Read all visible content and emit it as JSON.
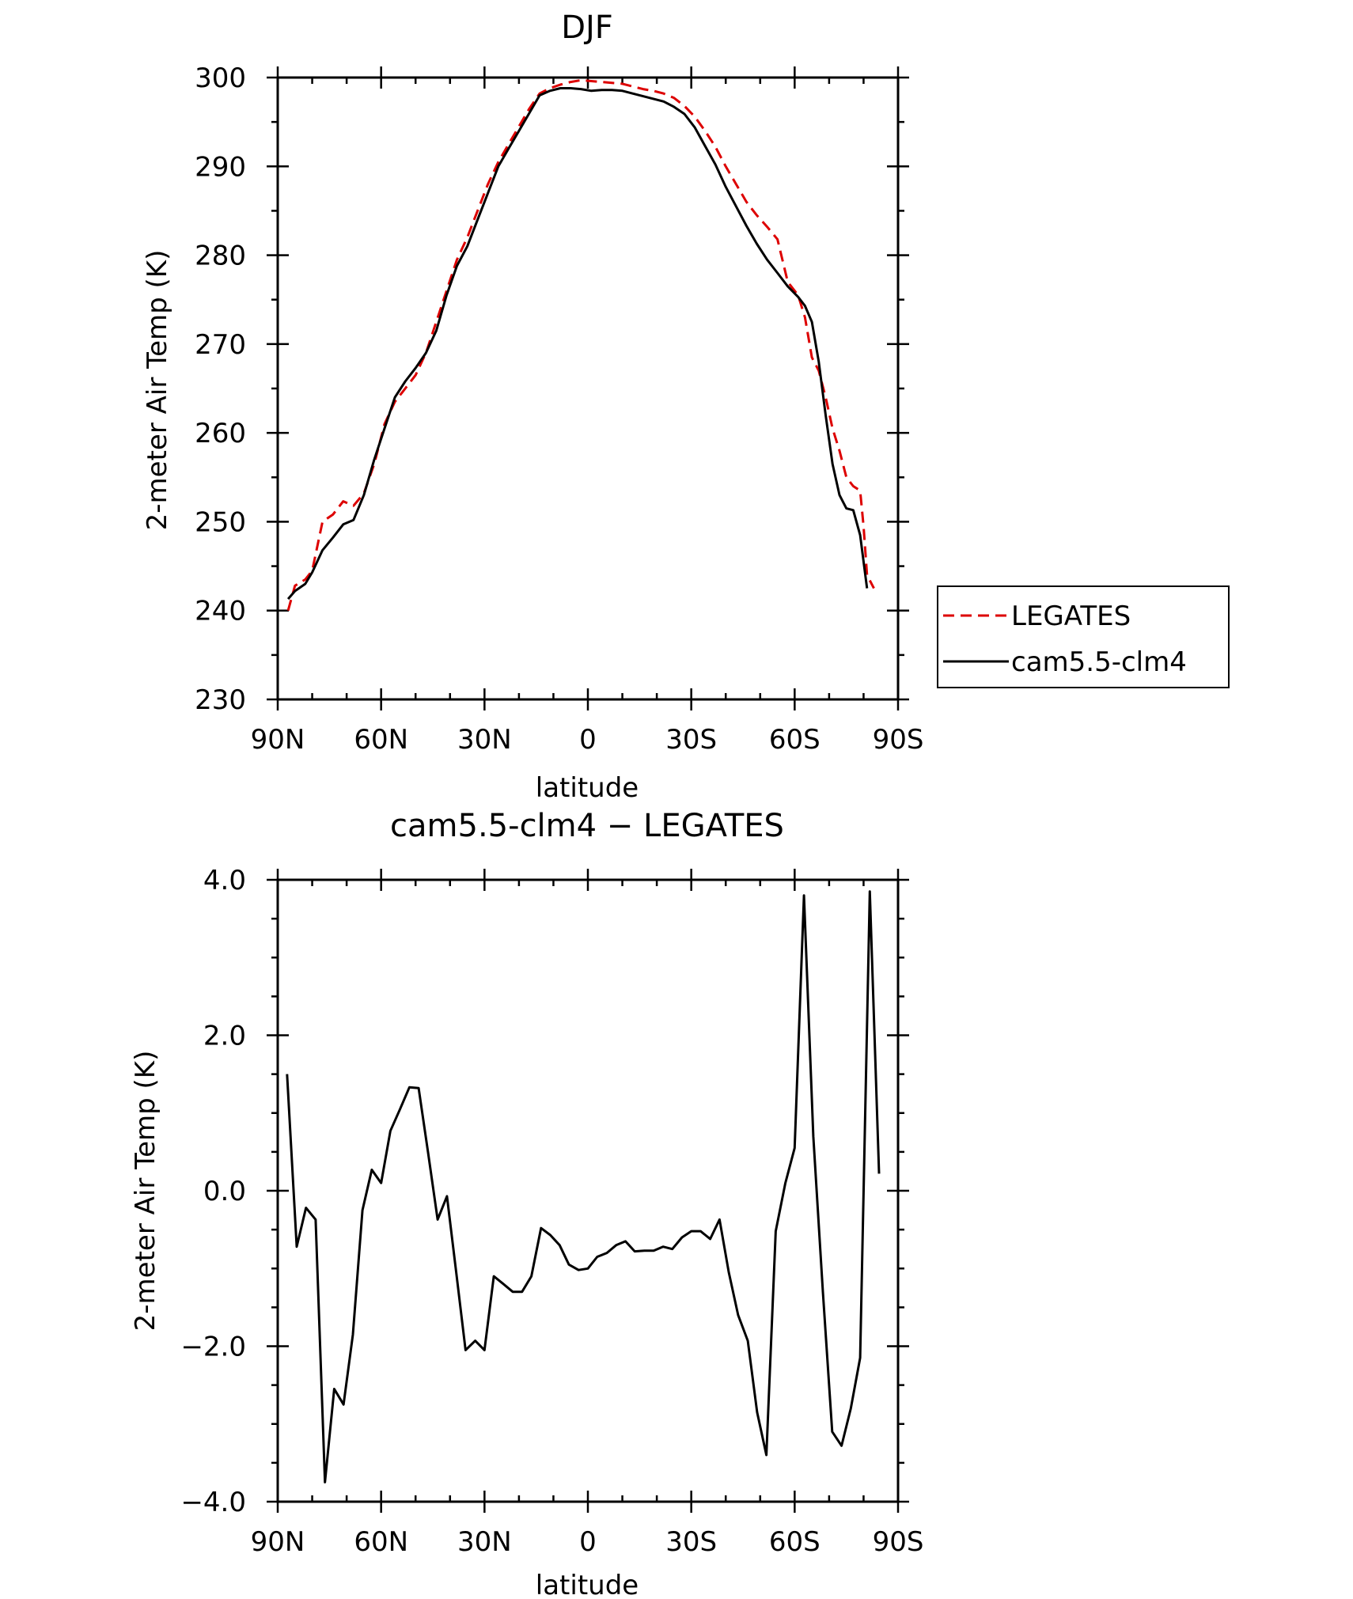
{
  "chart_data": [
    {
      "type": "line",
      "title": "DJF",
      "xlabel": "latitude",
      "ylabel": "2-meter Air Temp (K)",
      "xlim": [
        90,
        -90
      ],
      "ylim": [
        230,
        300
      ],
      "xticks": [
        90,
        60,
        30,
        0,
        -30,
        -60,
        -90
      ],
      "xtick_labels": [
        "90N",
        "60N",
        "30N",
        "0",
        "30S",
        "60S",
        "90S"
      ],
      "yticks": [
        230,
        240,
        250,
        260,
        270,
        280,
        290,
        300
      ],
      "ytick_labels": [
        "230",
        "240",
        "250",
        "260",
        "270",
        "280",
        "290",
        "300"
      ],
      "legend_position": "right",
      "series": [
        {
          "name": "LEGATES",
          "color": "#dd0000",
          "style": "dashed",
          "points": [
            [
              87,
              240
            ],
            [
              85,
              242.8
            ],
            [
              82,
              243.5
            ],
            [
              80,
              244.5
            ],
            [
              77,
              250
            ],
            [
              74,
              250.8
            ],
            [
              71,
              252.3
            ],
            [
              68,
              251.8
            ],
            [
              65,
              253.2
            ],
            [
              62,
              256.5
            ],
            [
              59,
              261
            ],
            [
              56,
              263.5
            ],
            [
              53,
              265
            ],
            [
              50,
              266.5
            ],
            [
              47,
              269
            ],
            [
              44,
              272.5
            ],
            [
              41,
              276
            ],
            [
              38,
              279.5
            ],
            [
              35,
              282
            ],
            [
              32,
              285
            ],
            [
              29,
              288
            ],
            [
              26,
              290.5
            ],
            [
              23,
              292.5
            ],
            [
              20,
              294.5
            ],
            [
              17,
              296.5
            ],
            [
              14,
              298.2
            ],
            [
              11,
              298.8
            ],
            [
              8,
              299.2
            ],
            [
              5,
              299.5
            ],
            [
              2,
              299.7
            ],
            [
              -1,
              299.6
            ],
            [
              -4,
              299.5
            ],
            [
              -7,
              299.4
            ],
            [
              -10,
              299.3
            ],
            [
              -13,
              299
            ],
            [
              -16,
              298.7
            ],
            [
              -19,
              298.5
            ],
            [
              -22,
              298.2
            ],
            [
              -25,
              297.7
            ],
            [
              -28,
              296.8
            ],
            [
              -31,
              295.6
            ],
            [
              -34,
              294
            ],
            [
              -37,
              292.2
            ],
            [
              -40,
              290
            ],
            [
              -43,
              288
            ],
            [
              -46,
              286
            ],
            [
              -49,
              284.5
            ],
            [
              -52,
              283.2
            ],
            [
              -55,
              281.8
            ],
            [
              -58,
              277
            ],
            [
              -61,
              275.5
            ],
            [
              -63,
              273
            ],
            [
              -65,
              268.5
            ],
            [
              -67,
              267
            ],
            [
              -69,
              264
            ],
            [
              -71,
              260.5
            ],
            [
              -73,
              258
            ],
            [
              -75,
              255
            ],
            [
              -77,
              254
            ],
            [
              -79,
              253.5
            ],
            [
              -80,
              249.5
            ],
            [
              -81,
              244
            ],
            [
              -83,
              242.5
            ]
          ]
        },
        {
          "name": "cam5.5-clm4",
          "color": "#000000",
          "style": "solid",
          "points": [
            [
              87,
              241.3
            ],
            [
              85,
              242.2
            ],
            [
              82,
              243
            ],
            [
              80,
              244.3
            ],
            [
              77,
              246.8
            ],
            [
              74,
              248.2
            ],
            [
              71,
              249.7
            ],
            [
              68,
              250.2
            ],
            [
              65,
              253
            ],
            [
              62,
              257
            ],
            [
              59,
              260.5
            ],
            [
              56,
              264
            ],
            [
              53,
              265.8
            ],
            [
              50,
              267.3
            ],
            [
              47,
              269
            ],
            [
              44,
              271.5
            ],
            [
              41,
              275.5
            ],
            [
              38,
              278.8
            ],
            [
              35,
              281
            ],
            [
              32,
              284
            ],
            [
              29,
              287
            ],
            [
              26,
              290
            ],
            [
              23,
              292
            ],
            [
              20,
              294
            ],
            [
              17,
              296
            ],
            [
              14,
              298
            ],
            [
              11,
              298.5
            ],
            [
              8,
              298.8
            ],
            [
              5,
              298.8
            ],
            [
              2,
              298.7
            ],
            [
              -1,
              298.5
            ],
            [
              -4,
              298.6
            ],
            [
              -7,
              298.6
            ],
            [
              -10,
              298.5
            ],
            [
              -13,
              298.2
            ],
            [
              -16,
              297.9
            ],
            [
              -19,
              297.6
            ],
            [
              -22,
              297.3
            ],
            [
              -25,
              296.7
            ],
            [
              -28,
              295.9
            ],
            [
              -31,
              294.4
            ],
            [
              -34,
              292.3
            ],
            [
              -37,
              290.2
            ],
            [
              -40,
              287.7
            ],
            [
              -43,
              285.5
            ],
            [
              -46,
              283.3
            ],
            [
              -49,
              281.3
            ],
            [
              -52,
              279.5
            ],
            [
              -55,
              278
            ],
            [
              -58,
              276.5
            ],
            [
              -61,
              275.3
            ],
            [
              -63,
              274.3
            ],
            [
              -65,
              272.5
            ],
            [
              -67,
              268
            ],
            [
              -69,
              262
            ],
            [
              -71,
              256.5
            ],
            [
              -73,
              253
            ],
            [
              -75,
              251.5
            ],
            [
              -77,
              251.3
            ],
            [
              -79,
              248.5
            ],
            [
              -81,
              242.5
            ]
          ]
        }
      ]
    },
    {
      "type": "line",
      "title": "cam5.5-clm4 − LEGATES",
      "xlabel": "latitude",
      "ylabel": "2-meter Air Temp (K)",
      "xlim": [
        90,
        -90
      ],
      "ylim": [
        -4,
        4
      ],
      "xticks": [
        90,
        60,
        30,
        0,
        -30,
        -60,
        -90
      ],
      "xtick_labels": [
        "90N",
        "60N",
        "30N",
        "0",
        "30S",
        "60S",
        "90S"
      ],
      "yticks": [
        -4,
        -2,
        0,
        2,
        4
      ],
      "ytick_labels": [
        "−4.0",
        "−2.0",
        "0.0",
        "2.0",
        "4.0"
      ],
      "series": [
        {
          "color": "#000000",
          "style": "solid",
          "points": [
            [
              87.3,
              1.5
            ],
            [
              84.5,
              -0.72
            ],
            [
              81.8,
              -0.22
            ],
            [
              79,
              -0.37
            ],
            [
              76.3,
              -3.75
            ],
            [
              73.6,
              -2.55
            ],
            [
              70.9,
              -2.75
            ],
            [
              68.2,
              -1.85
            ],
            [
              65.4,
              -0.25
            ],
            [
              62.7,
              0.27
            ],
            [
              60,
              0.1
            ],
            [
              57.3,
              0.77
            ],
            [
              54.5,
              1.05
            ],
            [
              51.8,
              1.33
            ],
            [
              49.1,
              1.32
            ],
            [
              46.4,
              0.5
            ],
            [
              43.6,
              -0.37
            ],
            [
              40.9,
              -0.07
            ],
            [
              38.2,
              -1.05
            ],
            [
              35.5,
              -2.05
            ],
            [
              32.7,
              -1.93
            ],
            [
              30,
              -2.05
            ],
            [
              27.3,
              -1.1
            ],
            [
              24.5,
              -1.2
            ],
            [
              21.8,
              -1.3
            ],
            [
              19.1,
              -1.3
            ],
            [
              16.4,
              -1.1
            ],
            [
              13.6,
              -0.48
            ],
            [
              10.9,
              -0.57
            ],
            [
              8.2,
              -0.7
            ],
            [
              5.5,
              -0.95
            ],
            [
              2.7,
              -1.02
            ],
            [
              0,
              -1
            ],
            [
              -2.7,
              -0.85
            ],
            [
              -5.5,
              -0.8
            ],
            [
              -8.2,
              -0.7
            ],
            [
              -10.9,
              -0.65
            ],
            [
              -13.6,
              -0.78
            ],
            [
              -16.4,
              -0.77
            ],
            [
              -19.1,
              -0.77
            ],
            [
              -21.8,
              -0.72
            ],
            [
              -24.5,
              -0.75
            ],
            [
              -27.3,
              -0.6
            ],
            [
              -30,
              -0.52
            ],
            [
              -32.7,
              -0.52
            ],
            [
              -35.5,
              -0.62
            ],
            [
              -38.2,
              -0.37
            ],
            [
              -40.9,
              -1.05
            ],
            [
              -43.6,
              -1.6
            ],
            [
              -46.4,
              -1.93
            ],
            [
              -49.1,
              -2.85
            ],
            [
              -51.8,
              -3.4
            ],
            [
              -54.5,
              -0.52
            ],
            [
              -57.3,
              0.1
            ],
            [
              -60,
              0.55
            ],
            [
              -62.7,
              3.8
            ],
            [
              -65.4,
              0.7
            ],
            [
              -68.2,
              -1.3
            ],
            [
              -70.9,
              -3.1
            ],
            [
              -73.6,
              -3.28
            ],
            [
              -76.3,
              -2.8
            ],
            [
              -79,
              -2.15
            ],
            [
              -81.8,
              3.85
            ],
            [
              -84.5,
              0.22
            ]
          ]
        }
      ]
    }
  ]
}
